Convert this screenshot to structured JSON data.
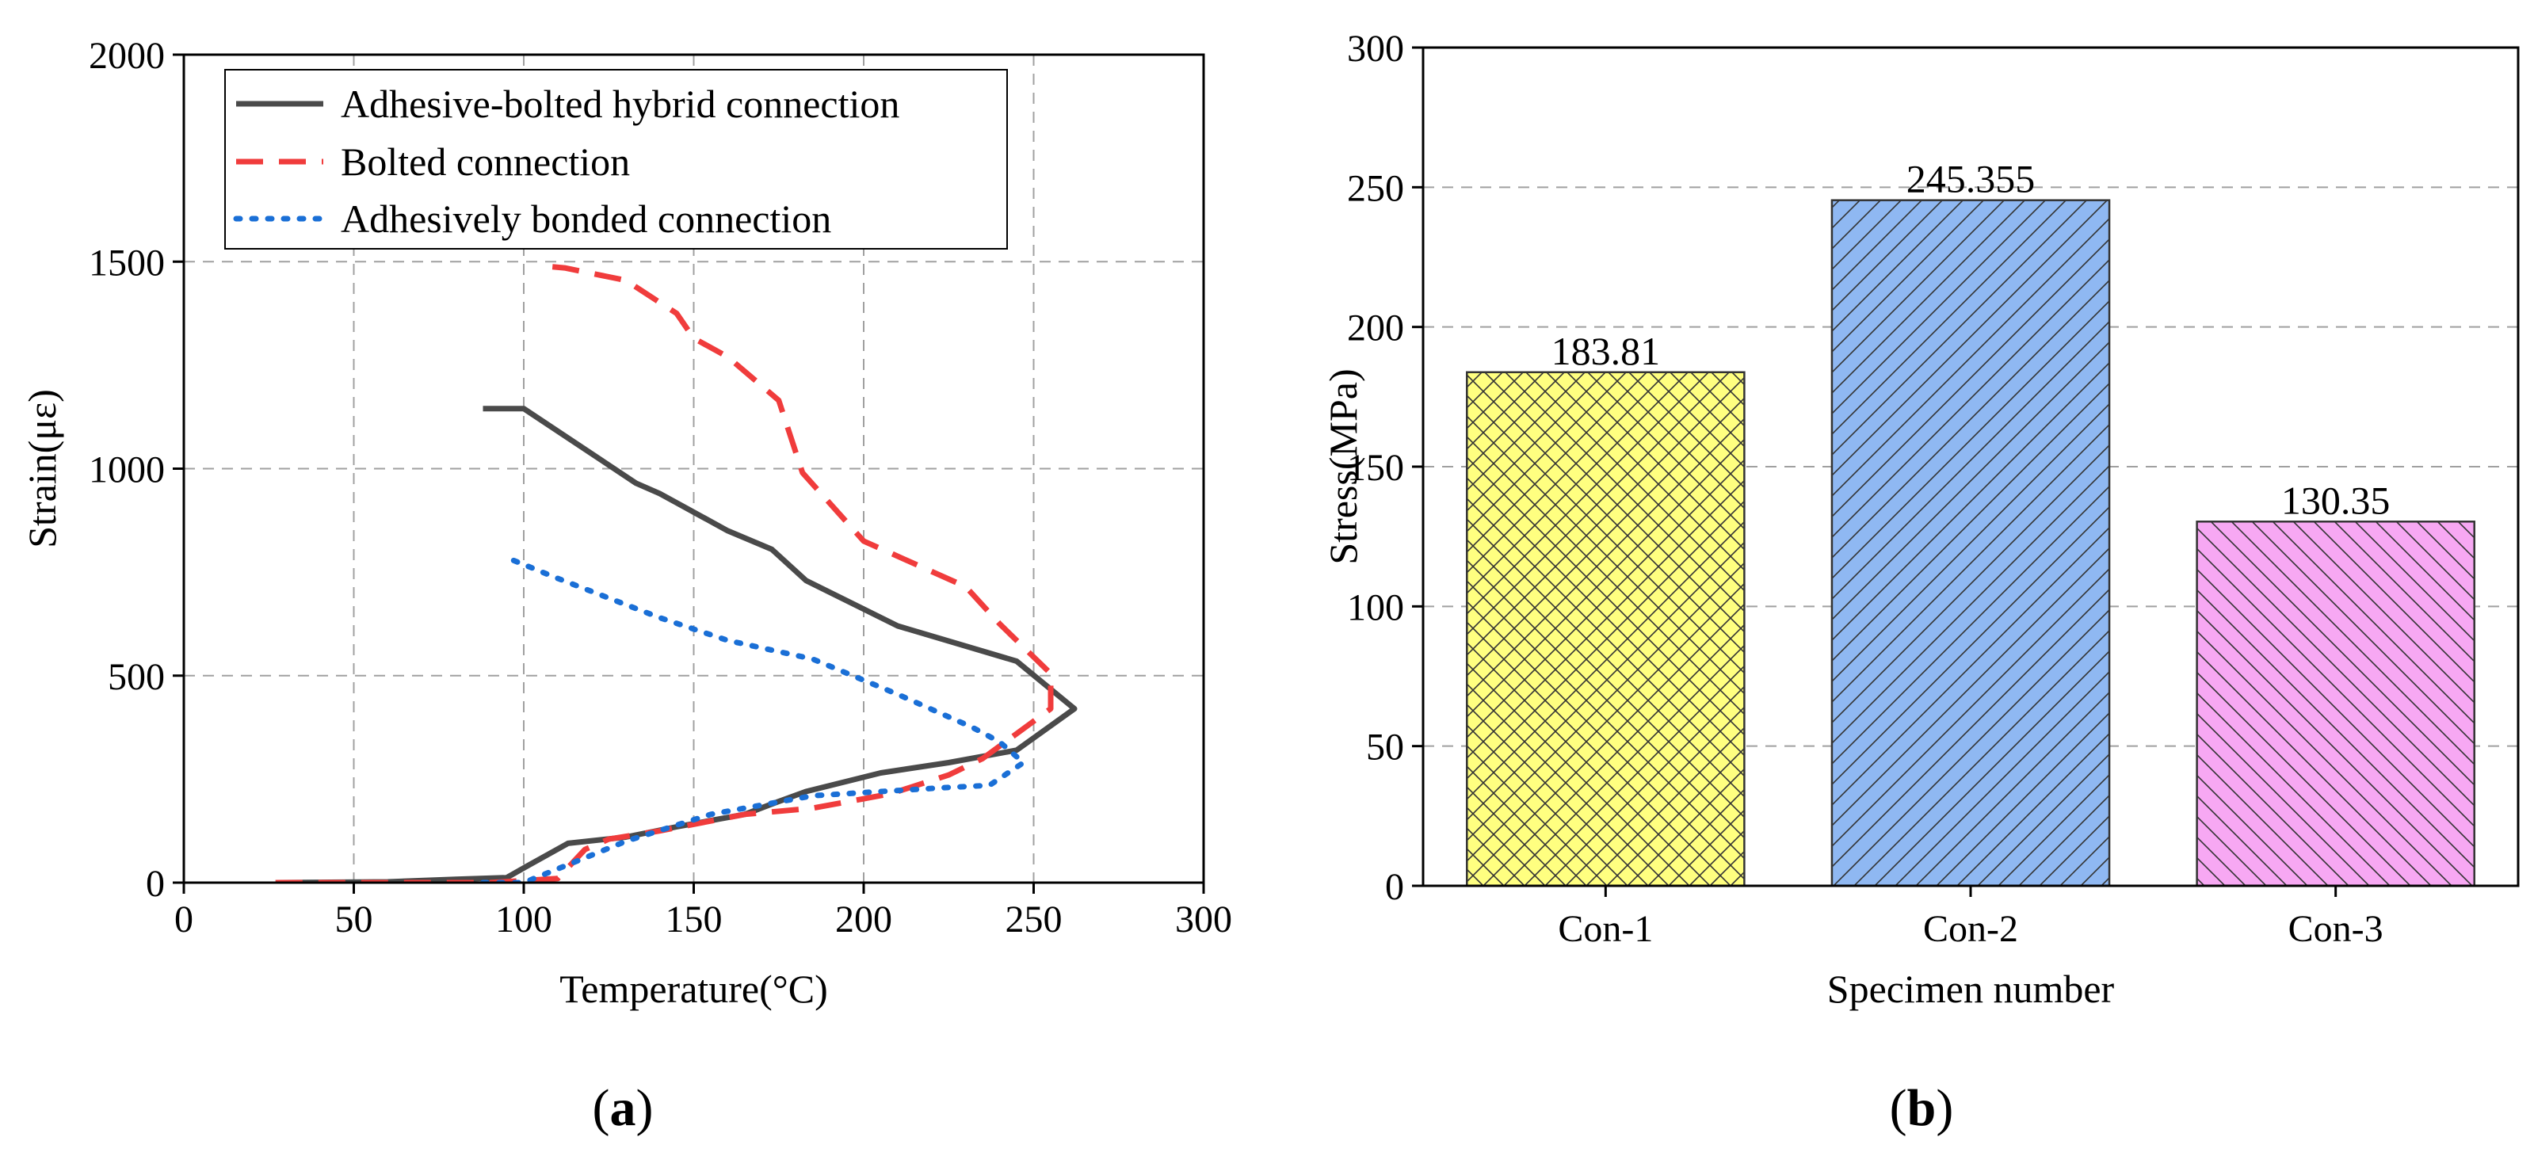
{
  "chart_data": [
    {
      "type": "line",
      "panel_label": "(a)",
      "xlabel": "Temperature(°C)",
      "ylabel": "Strain(με)",
      "xlim": [
        0,
        300
      ],
      "ylim": [
        0,
        2000
      ],
      "xticks": [
        0,
        50,
        100,
        150,
        200,
        250,
        300
      ],
      "yticks": [
        0,
        500,
        1000,
        1500,
        2000
      ],
      "grid": true,
      "legend_position": "top-left",
      "series": [
        {
          "name": "Adhesive-bolted hybrid connection",
          "color": "#4a4a4a",
          "style": "solid",
          "points": [
            [
              27,
              0
            ],
            [
              60,
              2
            ],
            [
              80,
              8
            ],
            [
              95,
              12
            ],
            [
              101,
              40
            ],
            [
              113,
              95
            ],
            [
              130,
              110
            ],
            [
              145,
              135
            ],
            [
              165,
              165
            ],
            [
              173,
              190
            ],
            [
              183,
              220
            ],
            [
              205,
              265
            ],
            [
              225,
              290
            ],
            [
              245,
              320
            ],
            [
              262,
              420
            ],
            [
              245,
              535
            ],
            [
              210,
              620
            ],
            [
              183,
              730
            ],
            [
              173,
              805
            ],
            [
              160,
              850
            ],
            [
              140,
              940
            ],
            [
              133,
              965
            ],
            [
              100,
              1145
            ],
            [
              88,
              1145
            ]
          ]
        },
        {
          "name": "Bolted connection",
          "color": "#f03c3c",
          "style": "dashed",
          "points": [
            [
              27,
              0
            ],
            [
              90,
              0
            ],
            [
              110,
              10
            ],
            [
              118,
              80
            ],
            [
              125,
              105
            ],
            [
              140,
              125
            ],
            [
              165,
              165
            ],
            [
              185,
              180
            ],
            [
              208,
              215
            ],
            [
              225,
              260
            ],
            [
              235,
              300
            ],
            [
              255,
              420
            ],
            [
              255,
              505
            ],
            [
              240,
              625
            ],
            [
              230,
              715
            ],
            [
              200,
              825
            ],
            [
              182,
              990
            ],
            [
              175,
              1165
            ],
            [
              160,
              1270
            ],
            [
              150,
              1315
            ],
            [
              145,
              1375
            ],
            [
              130,
              1455
            ],
            [
              112,
              1485
            ],
            [
              105,
              1490
            ]
          ]
        },
        {
          "name": "Adhesively bonded connection",
          "color": "#1a6fd6",
          "style": "dotted",
          "points": [
            [
              88,
              0
            ],
            [
              100,
              0
            ],
            [
              115,
              50
            ],
            [
              130,
              100
            ],
            [
              155,
              165
            ],
            [
              185,
              210
            ],
            [
              205,
              220
            ],
            [
              225,
              230
            ],
            [
              237,
              235
            ],
            [
              247,
              290
            ],
            [
              240,
              340
            ],
            [
              232,
              375
            ],
            [
              210,
              455
            ],
            [
              185,
              540
            ],
            [
              160,
              585
            ],
            [
              140,
              640
            ],
            [
              110,
              735
            ],
            [
              95,
              785
            ]
          ]
        }
      ]
    },
    {
      "type": "bar",
      "panel_label": "(b)",
      "xlabel": "Specimen number",
      "ylabel": "Stress(MPa)",
      "ylim": [
        0,
        300
      ],
      "yticks": [
        0,
        50,
        100,
        150,
        200,
        250,
        300
      ],
      "grid": true,
      "categories": [
        "Con-1",
        "Con-2",
        "Con-3"
      ],
      "values": [
        183.81,
        245.355,
        130.35
      ],
      "value_labels": [
        "183.81",
        "245.355",
        "130.35"
      ],
      "colors": [
        "#ffff80",
        "#8fb8f2",
        "#f7a8f3"
      ]
    }
  ]
}
